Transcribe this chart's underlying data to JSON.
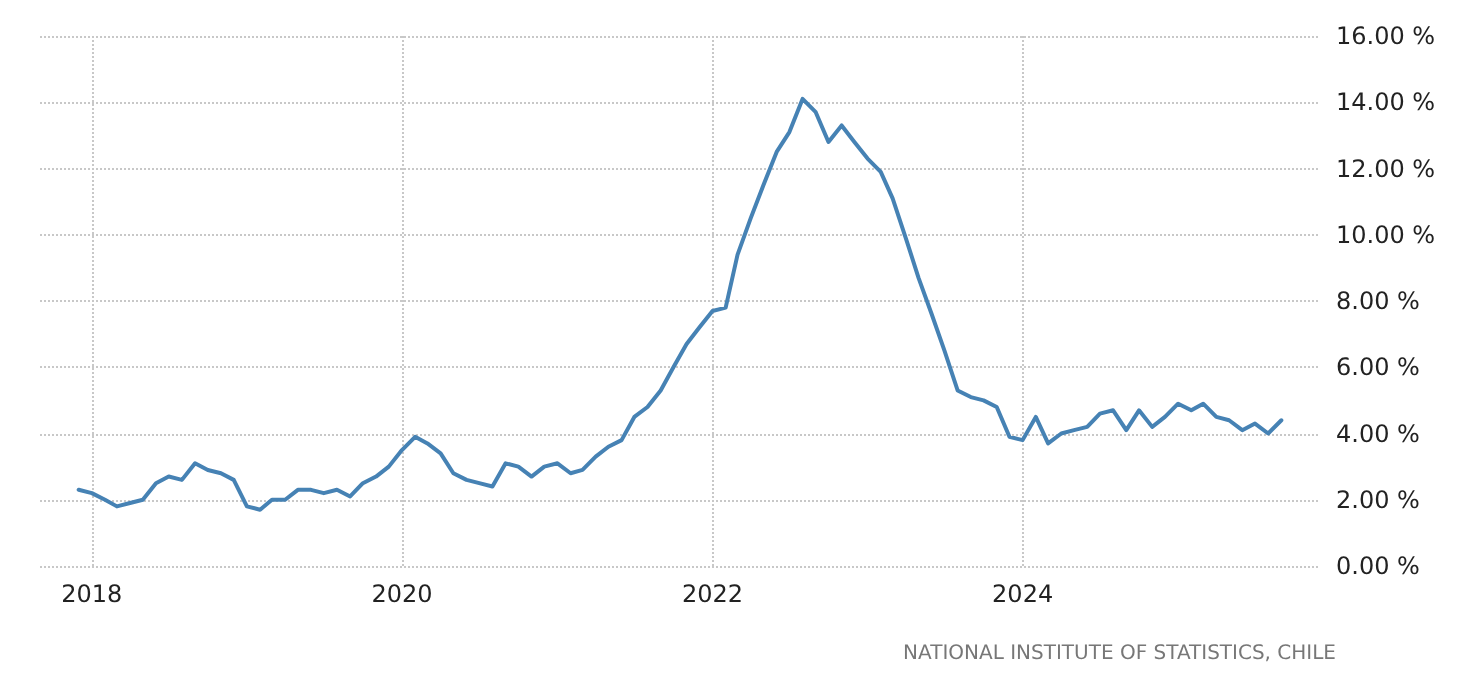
{
  "chart_data": {
    "type": "line",
    "x": [
      "2017-12",
      "2018-01",
      "2018-02",
      "2018-03",
      "2018-04",
      "2018-05",
      "2018-06",
      "2018-07",
      "2018-08",
      "2018-09",
      "2018-10",
      "2018-11",
      "2018-12",
      "2019-01",
      "2019-02",
      "2019-03",
      "2019-04",
      "2019-05",
      "2019-06",
      "2019-07",
      "2019-08",
      "2019-09",
      "2019-10",
      "2019-11",
      "2019-12",
      "2020-01",
      "2020-02",
      "2020-03",
      "2020-04",
      "2020-05",
      "2020-06",
      "2020-07",
      "2020-08",
      "2020-09",
      "2020-10",
      "2020-11",
      "2020-12",
      "2021-01",
      "2021-02",
      "2021-03",
      "2021-04",
      "2021-05",
      "2021-06",
      "2021-07",
      "2021-08",
      "2021-09",
      "2021-10",
      "2021-11",
      "2021-12",
      "2022-01",
      "2022-02",
      "2022-03",
      "2022-04",
      "2022-05",
      "2022-06",
      "2022-07",
      "2022-08",
      "2022-09",
      "2022-10",
      "2022-11",
      "2022-12",
      "2023-01",
      "2023-02",
      "2023-03",
      "2023-04",
      "2023-05",
      "2023-06",
      "2023-07",
      "2023-08",
      "2023-09",
      "2023-10",
      "2023-11",
      "2023-12",
      "2024-01",
      "2024-02",
      "2024-03",
      "2024-04",
      "2024-05",
      "2024-06",
      "2024-07",
      "2024-08",
      "2024-09",
      "2024-10",
      "2024-11",
      "2024-12",
      "2025-01",
      "2025-02",
      "2025-03",
      "2025-04",
      "2025-05",
      "2025-06",
      "2025-07",
      "2025-08",
      "2025-09"
    ],
    "series": [
      {
        "color": "#4682b4",
        "values": [
          2.3,
          2.2,
          2.0,
          1.8,
          1.9,
          2.0,
          2.5,
          2.7,
          2.6,
          3.1,
          2.9,
          2.8,
          2.6,
          1.8,
          1.7,
          2.0,
          2.0,
          2.3,
          2.3,
          2.2,
          2.3,
          2.1,
          2.5,
          2.7,
          3.0,
          3.5,
          3.9,
          3.7,
          3.4,
          2.8,
          2.6,
          2.5,
          2.4,
          3.1,
          3.0,
          2.7,
          3.0,
          3.1,
          2.8,
          2.9,
          3.3,
          3.6,
          3.8,
          4.5,
          4.8,
          5.3,
          6.0,
          6.7,
          7.2,
          7.7,
          7.8,
          9.4,
          10.5,
          11.5,
          12.5,
          13.1,
          14.1,
          13.7,
          12.8,
          13.3,
          12.8,
          12.3,
          11.9,
          11.1,
          9.9,
          8.7,
          7.6,
          6.5,
          5.3,
          5.1,
          5.0,
          4.8,
          3.9,
          3.8,
          4.5,
          3.7,
          4.0,
          4.1,
          4.2,
          4.6,
          4.7,
          4.1,
          4.7,
          4.2,
          4.5,
          4.9,
          4.7,
          4.9,
          4.5,
          4.4,
          4.1,
          4.3,
          4.0,
          4.4
        ]
      }
    ],
    "xlim": [
      "2017-09",
      "2025-12"
    ],
    "xticks": [
      "2018",
      "2020",
      "2022",
      "2024"
    ],
    "ylim": [
      0,
      16
    ],
    "yticks": [
      {
        "value": 0,
        "label": "0.00 %"
      },
      {
        "value": 2,
        "label": "2.00 %"
      },
      {
        "value": 4,
        "label": "4.00 %"
      },
      {
        "value": 6,
        "label": "6.00 %"
      },
      {
        "value": 8,
        "label": "8.00 %"
      },
      {
        "value": 10,
        "label": "10.00 %"
      },
      {
        "value": 12,
        "label": "12.00 %"
      },
      {
        "value": 14,
        "label": "14.00 %"
      },
      {
        "value": 16,
        "label": "16.00 %"
      }
    ],
    "grid": true,
    "marker": "none",
    "line_style": "solid",
    "annotations": [
      "NATIONAL INSTITUTE OF STATISTICS, CHILE"
    ]
  }
}
